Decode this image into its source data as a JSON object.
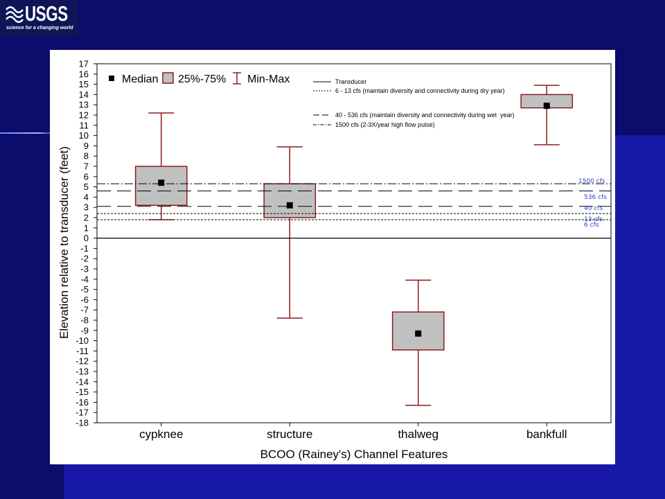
{
  "slide": {
    "logo": {
      "name": "USGS",
      "tagline": "science for a changing world"
    },
    "colors": {
      "background": "#0c0c6c",
      "accent_band": "#1818a8",
      "logo_box": "#0f1656",
      "panel": "#ffffff"
    }
  },
  "chart_data": {
    "type": "box",
    "title": "",
    "xlabel": "BCOO (Rainey's) Channel Features",
    "ylabel": "Elevation relative to transducer (feet)",
    "ylim": [
      -18,
      17
    ],
    "yticks": [
      17,
      16,
      15,
      14,
      13,
      12,
      11,
      10,
      9,
      8,
      7,
      6,
      5,
      4,
      3,
      2,
      1,
      0,
      -1,
      -2,
      -3,
      -4,
      -5,
      -6,
      -7,
      -8,
      -9,
      -10,
      -11,
      -12,
      -13,
      -14,
      -15,
      -16,
      -17,
      -18
    ],
    "categories": [
      "cypknee",
      "structure",
      "thalweg",
      "bankfull"
    ],
    "boxes": [
      {
        "category": "cypknee",
        "median": 5.4,
        "q1": 3.2,
        "q3": 7.0,
        "min": 1.8,
        "max": 12.2
      },
      {
        "category": "structure",
        "median": 3.2,
        "q1": 2.0,
        "q3": 5.3,
        "min": -7.8,
        "max": 8.9
      },
      {
        "category": "thalweg",
        "median": -9.3,
        "q1": -10.9,
        "q3": -7.2,
        "min": -16.3,
        "max": -4.1
      },
      {
        "category": "bankfull",
        "median": 12.9,
        "q1": 12.7,
        "q3": 14.0,
        "min": 9.1,
        "max": 14.9
      }
    ],
    "box_legend": {
      "median": "Median",
      "box": "25%-75%",
      "whisker": "Min-Max"
    },
    "transducer_line": {
      "y": 0,
      "style": "solid"
    },
    "reference_lines": [
      {
        "label": "1500 cfs",
        "y": 5.3,
        "style": "dash-dot"
      },
      {
        "label": "536 cfs",
        "y": 4.6,
        "style": "long-dash"
      },
      {
        "label": "40 cfs",
        "y": 3.1,
        "style": "long-dash"
      },
      {
        "label": "13 cfs",
        "y": 2.4,
        "style": "dotted"
      },
      {
        "label": "6 cfs",
        "y": 1.8,
        "style": "dotted"
      }
    ],
    "line_legend": [
      {
        "label": "Transducer",
        "style": "solid"
      },
      {
        "label": "6 - 13 cfs (maintain diversity and connectivity during dry year)",
        "style": "dotted"
      },
      {
        "label": "40 - 536 cfs (maintain diversity and connectivity during wet  year)",
        "style": "long-dash"
      },
      {
        "label": "1500 cfs (2-3X/year high flow pulse)",
        "style": "dash-dot"
      }
    ],
    "legend_placement": "top",
    "grid": false,
    "colors": {
      "box_fill": "#c0c0c0",
      "box_edge": "#8b1c1c",
      "whisker": "#8b1c1c",
      "median": "#000000",
      "reference_line": "#000000",
      "reference_label": "#2f3fc4"
    }
  }
}
